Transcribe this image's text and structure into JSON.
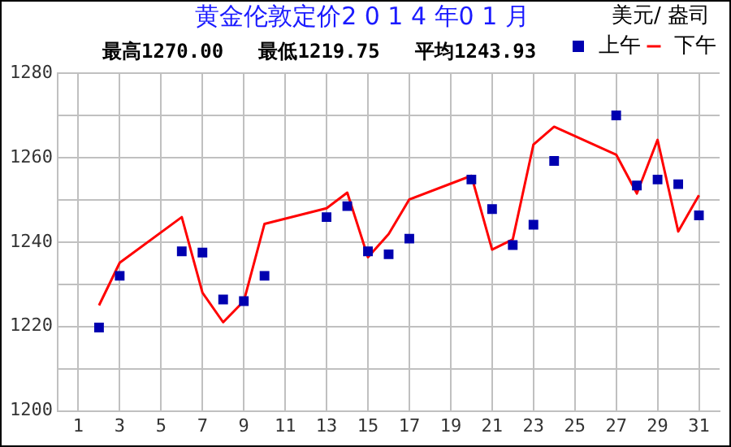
{
  "chart_data": {
    "type": "line",
    "title": "黄金伦敦定价2 0 1 4 年0 1 月",
    "subtitle": "最高1270.00   最低1219.75   平均1243.93",
    "ylabel": "美元/ 盎司",
    "xlim": [
      0,
      32
    ],
    "xticks": [
      1,
      3,
      5,
      7,
      9,
      11,
      13,
      15,
      17,
      19,
      21,
      23,
      25,
      27,
      29,
      31
    ],
    "ylim": [
      1200,
      1280
    ],
    "yticks": [
      1200,
      {
        "value": 1210,
        "label": null
      },
      1220,
      {
        "value": 1230,
        "label": null
      },
      1240,
      {
        "value": 1250,
        "label": null
      },
      1260,
      {
        "value": 1270,
        "label": null
      },
      1280
    ],
    "grid": true,
    "legend": "top right",
    "series": [
      {
        "name": "上午",
        "type": "scatter",
        "marker": "square",
        "color": "#0000b0",
        "x": [
          2,
          3,
          6,
          7,
          8,
          9,
          10,
          13,
          14,
          15,
          16,
          17,
          20,
          21,
          22,
          23,
          24,
          27,
          28,
          29,
          30,
          31
        ],
        "values": [
          1219.75,
          1232,
          1237.8,
          1237.5,
          1226.4,
          1226,
          1232,
          1245.9,
          1248.5,
          1237.8,
          1237.1,
          1240.8,
          1254.8,
          1247.8,
          1239.3,
          1244.1,
          1259.2,
          1270,
          1253.4,
          1254.8,
          1253.7,
          1246.3
        ]
      },
      {
        "name": "下午",
        "marker": "none",
        "color": "#ff0000",
        "x": [
          2,
          3,
          6,
          7,
          8,
          9,
          10,
          13,
          14,
          15,
          16,
          17,
          20,
          21,
          22,
          23,
          24,
          27,
          28,
          29,
          30,
          31
        ],
        "values": [
          1225,
          1235.1,
          1245.9,
          1228,
          1221,
          1226,
          1244.3,
          1248,
          1251.7,
          1236.4,
          1241.9,
          1250.1,
          1255.7,
          1238.2,
          1240.6,
          1263.1,
          1267.3,
          1260.7,
          1251.5,
          1264.2,
          1242.5,
          1251.1
        ]
      }
    ]
  }
}
